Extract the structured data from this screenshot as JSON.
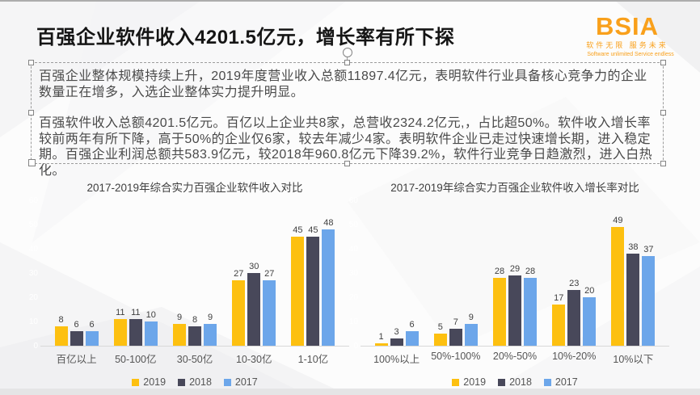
{
  "slide": {
    "title": "百强企业软件收入4201.5亿元，增长率有所下探",
    "body": {
      "paragraph1": "百强企业整体规模持续上升，2019年度营业收入总额11897.4亿元，表明软件行业具备核心竞争力的企业数量正在增多，入选企业整体实力提升明显。",
      "paragraph2": "百强软件收入总额4201.5亿元。百亿以上企业共8家，总营收2324.2亿元,，占比超50%。软件收入增长率较前两年有所下降，高于50%的企业仅6家，较去年减少4家。表明软件企业已走过快速增长期，进入稳定期。百强企业利润总额共583.9亿元，较2018年960.8亿元下降39.2%，软件行业竞争日趋激烈，进入白热化。"
    },
    "logo": {
      "wordmark": "BSIA",
      "tagline_cn": "软件无限  服务未来",
      "tagline_en": "Software unlimited  Service endless",
      "color": "#F9A01B"
    }
  },
  "colors": {
    "series_2019": "#FDC010",
    "series_2018": "#48485A",
    "series_2017": "#6CA6EA",
    "axis_line": "#D8D8D8",
    "logo_orange": "#F9A01B"
  },
  "chart_data": [
    {
      "type": "bar",
      "title": "2017-2019年综合实力百强企业软件收入对比",
      "categories": [
        "百亿以上",
        "50-100亿",
        "30-50亿",
        "10-30亿",
        "1-10亿"
      ],
      "series": [
        {
          "name": "2019",
          "color": "#FDC010",
          "values": [
            8,
            11,
            9,
            27,
            45
          ]
        },
        {
          "name": "2018",
          "color": "#48485A",
          "values": [
            6,
            11,
            8,
            30,
            45
          ]
        },
        {
          "name": "2017",
          "color": "#6CA6EA",
          "values": [
            6,
            10,
            9,
            27,
            48
          ]
        }
      ],
      "ylim": [
        0,
        60
      ],
      "yticks": [
        0,
        10,
        20,
        30,
        40,
        50,
        60
      ],
      "grid": false,
      "legend_position": "bottom"
    },
    {
      "type": "bar",
      "title": "2017-2019年综合实力百强企业软件收入增长率对比",
      "categories": [
        "100%以上",
        "50%-100%",
        "20%-50%",
        "10%-20%",
        "10%以下"
      ],
      "series": [
        {
          "name": "2019",
          "color": "#FDC010",
          "values": [
            1,
            5,
            28,
            17,
            49
          ]
        },
        {
          "name": "2018",
          "color": "#48485A",
          "values": [
            3,
            7,
            29,
            23,
            38
          ]
        },
        {
          "name": "2017",
          "color": "#6CA6EA",
          "values": [
            6,
            9,
            28,
            20,
            37
          ]
        }
      ],
      "ylim": [
        0,
        60
      ],
      "yticks": [
        0,
        10,
        20,
        30,
        40,
        50,
        60
      ],
      "grid": false,
      "legend_position": "bottom"
    }
  ]
}
